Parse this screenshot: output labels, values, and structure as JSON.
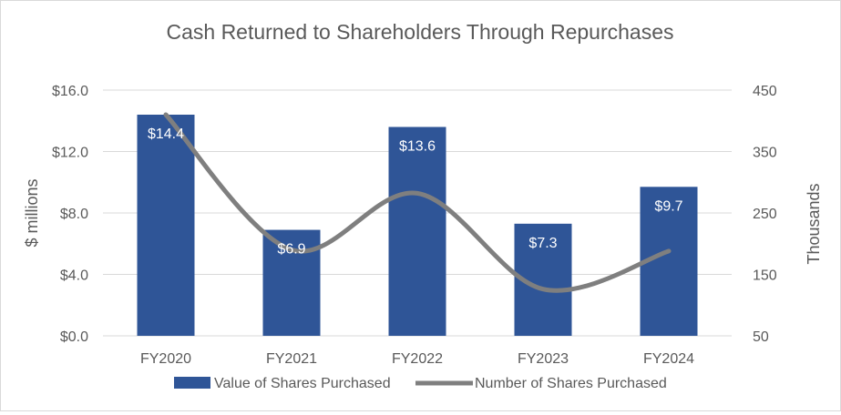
{
  "chart_data": {
    "type": "bar",
    "title": "Cash Returned to Shareholders Through Repurchases",
    "categories": [
      "FY2020",
      "FY2021",
      "FY2022",
      "FY2023",
      "FY2024"
    ],
    "series": [
      {
        "name": "Value of Shares Purchased",
        "kind": "bar",
        "axis": "left",
        "values": [
          14.4,
          6.9,
          13.6,
          7.3,
          9.7
        ],
        "labels": [
          "$14.4",
          "$6.9",
          "$13.6",
          "$7.3",
          "$9.7"
        ],
        "color": "#2F5597"
      },
      {
        "name": "Number of Shares Purchased",
        "kind": "line",
        "axis": "right",
        "values": [
          410,
          190,
          282,
          126,
          188
        ],
        "color": "#7F7F7F"
      }
    ],
    "ylabel": "$ millions",
    "y2label": "Thousands",
    "ylim": [
      0,
      16
    ],
    "y2lim": [
      50,
      450
    ],
    "yticks": [
      0,
      4,
      8,
      12,
      16
    ],
    "ytick_labels": [
      "$0.0",
      "$4.0",
      "$8.0",
      "$12.0",
      "$16.0"
    ],
    "y2ticks": [
      50,
      150,
      250,
      350,
      450
    ],
    "y2tick_labels": [
      "50",
      "150",
      "250",
      "350",
      "450"
    ],
    "grid": true,
    "legend_position": "bottom",
    "colors": {
      "gridline": "#D9D9D9",
      "axis_text": "#595959",
      "title_text": "#595959",
      "bar_label": "#FFFFFF"
    }
  }
}
